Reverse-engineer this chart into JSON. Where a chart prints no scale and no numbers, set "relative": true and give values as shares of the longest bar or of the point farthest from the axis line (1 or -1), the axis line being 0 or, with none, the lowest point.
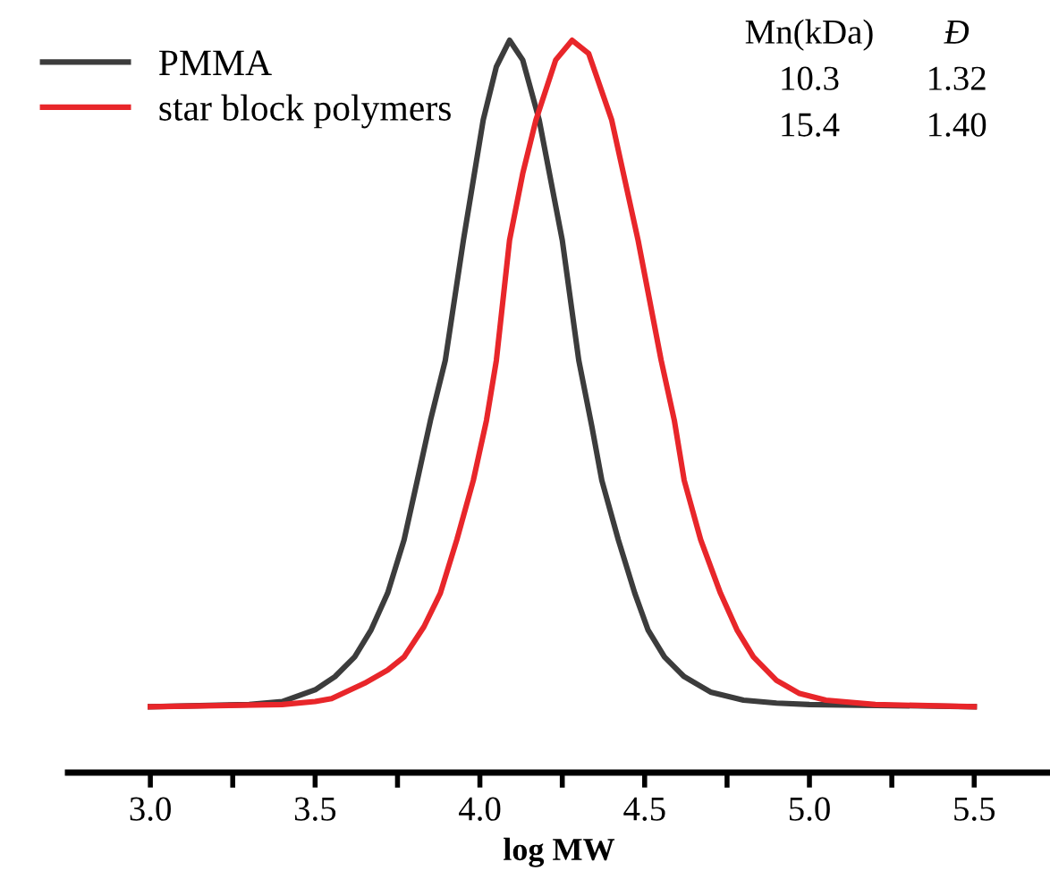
{
  "chart_data": {
    "type": "line",
    "xlabel": "log MW",
    "relative": true,
    "xlim": [
      2.75,
      5.73
    ],
    "xticks": [
      {
        "value": 3.0,
        "label": "3.0"
      },
      {
        "value": 3.25,
        "label": null
      },
      3.5,
      {
        "value": 3.75,
        "label": null
      },
      {
        "value": 4.0,
        "label": "4.0"
      },
      {
        "value": 4.25,
        "label": null
      },
      4.5,
      {
        "value": 4.75,
        "label": null
      },
      {
        "value": 5.0,
        "label": "5.0"
      },
      {
        "value": 5.25,
        "label": null
      },
      5.5
    ],
    "tick_labels": "x",
    "grid": false,
    "legend": "top left",
    "marker": "none",
    "line_style": "solid",
    "annotations": [
      "Mn(kDa)",
      "Đ",
      "10.3",
      "1.32",
      "15.4",
      "1.40"
    ],
    "series": [
      {
        "name": "PMMA",
        "color": "#3c3c3c",
        "x": [
          3.0,
          3.3,
          3.4,
          3.5,
          3.56,
          3.62,
          3.67,
          3.72,
          3.77,
          3.81,
          3.85,
          3.895,
          3.95,
          4.01,
          4.05,
          4.09,
          4.13,
          4.18,
          4.25,
          4.3,
          4.34,
          4.37,
          4.42,
          4.47,
          4.51,
          4.56,
          4.62,
          4.7,
          4.8,
          4.9,
          5.0,
          5.5
        ],
        "values": [
          0.09,
          0.093,
          0.097,
          0.113,
          0.131,
          0.158,
          0.195,
          0.245,
          0.318,
          0.399,
          0.481,
          0.563,
          0.727,
          0.891,
          0.964,
          1.0,
          0.973,
          0.891,
          0.727,
          0.563,
          0.472,
          0.399,
          0.318,
          0.245,
          0.195,
          0.158,
          0.131,
          0.11,
          0.099,
          0.095,
          0.093,
          0.09
        ]
      },
      {
        "name": "star block polymers",
        "color": "#e8262a",
        "x": [
          3.0,
          3.4,
          3.5,
          3.55,
          3.65,
          3.72,
          3.77,
          3.83,
          3.88,
          3.93,
          3.98,
          4.02,
          4.05,
          4.09,
          4.13,
          4.17,
          4.23,
          4.28,
          4.33,
          4.4,
          4.48,
          4.55,
          4.59,
          4.62,
          4.67,
          4.73,
          4.78,
          4.83,
          4.9,
          4.97,
          5.05,
          5.2,
          5.5
        ],
        "values": [
          0.09,
          0.093,
          0.097,
          0.101,
          0.122,
          0.14,
          0.158,
          0.199,
          0.245,
          0.318,
          0.399,
          0.481,
          0.563,
          0.727,
          0.818,
          0.891,
          0.973,
          1.0,
          0.982,
          0.891,
          0.727,
          0.563,
          0.481,
          0.399,
          0.318,
          0.245,
          0.195,
          0.158,
          0.126,
          0.108,
          0.099,
          0.093,
          0.09
        ]
      }
    ]
  }
}
